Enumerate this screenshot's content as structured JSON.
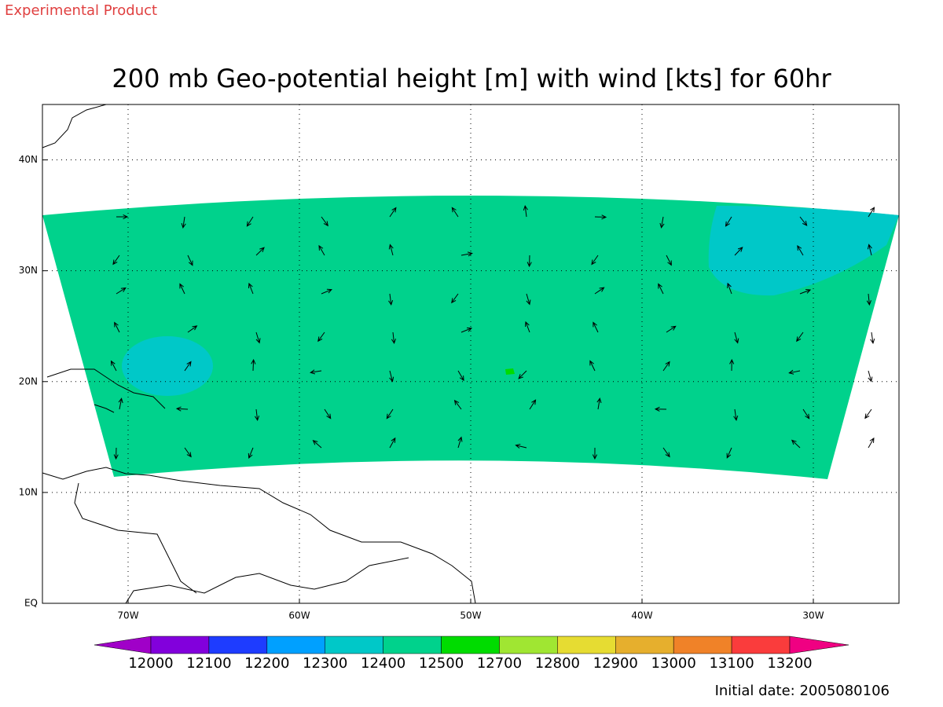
{
  "header": {
    "note": "Experimental Product",
    "title": "200 mb Geo-potential height [m] with wind [kts] for 60hr"
  },
  "map": {
    "xlim": [
      -75,
      -25
    ],
    "ylim": [
      0,
      45
    ],
    "xticks": [
      {
        "value": -70,
        "label": "70W"
      },
      {
        "value": -60,
        "label": "60W"
      },
      {
        "value": -50,
        "label": "50W"
      },
      {
        "value": -40,
        "label": "40W"
      },
      {
        "value": -30,
        "label": "30W"
      }
    ],
    "yticks": [
      {
        "value": 0,
        "label": "EQ"
      },
      {
        "value": 10,
        "label": "10N"
      },
      {
        "value": 20,
        "label": "20N"
      },
      {
        "value": 30,
        "label": "30N"
      },
      {
        "value": 40,
        "label": "40N"
      }
    ]
  },
  "colorbar": {
    "levels": [
      12000,
      12100,
      12200,
      12300,
      12400,
      12500,
      12700,
      12800,
      12900,
      13000,
      13100,
      13200
    ],
    "colors": [
      "#a000c8",
      "#8200dc",
      "#1e3cff",
      "#00a0ff",
      "#00c8c8",
      "#00d28c",
      "#00dc00",
      "#a0e632",
      "#e6dc32",
      "#e6af2d",
      "#f08228",
      "#fa3c3c",
      "#f00082"
    ]
  },
  "footer": {
    "date": "Initial date: 2005080106"
  }
}
